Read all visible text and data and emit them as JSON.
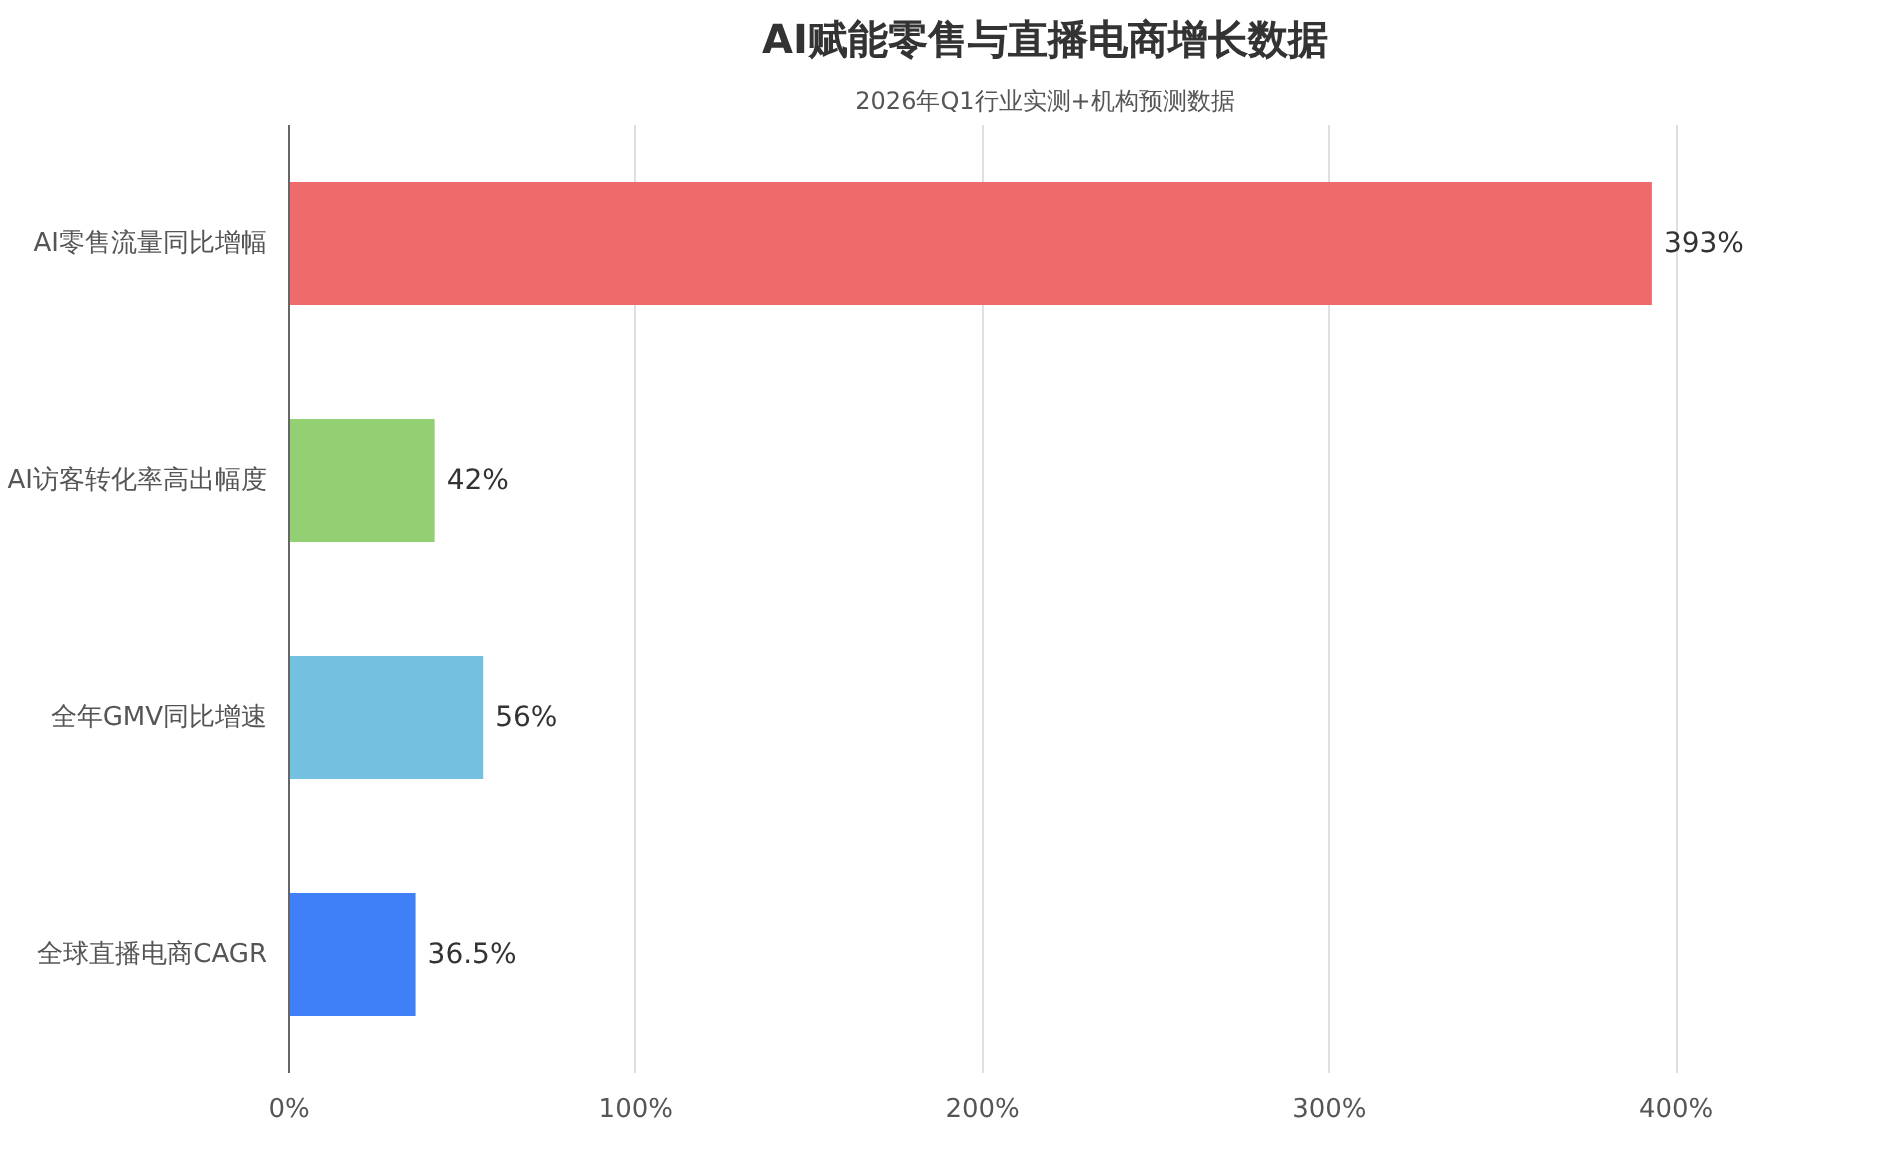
{
  "chart_data": {
    "type": "bar",
    "orientation": "horizontal",
    "title": "AI赋能零售与直播电商增长数据",
    "subtitle": "2026年Q1行业实测+机构预测数据",
    "categories": [
      "AI零售流量同比增幅",
      "AI访客转化率高出幅度",
      "全年GMV同比增速",
      "全球直播电商CAGR"
    ],
    "values": [
      393,
      42,
      56,
      36.5
    ],
    "colors": [
      "#ef6b6b",
      "#93cf73",
      "#74c0e0",
      "#3f7ff7"
    ],
    "value_labels": [
      "393%",
      "42%",
      "56%",
      "36.5%"
    ],
    "xlim": [
      0,
      400
    ],
    "xticks": [
      {
        "value": 0,
        "label": "0%"
      },
      {
        "value": 100,
        "label": "100%"
      },
      {
        "value": 200,
        "label": "200%"
      },
      {
        "value": 300,
        "label": "300%"
      },
      {
        "value": 400,
        "label": "400%"
      }
    ],
    "grid": "x"
  }
}
